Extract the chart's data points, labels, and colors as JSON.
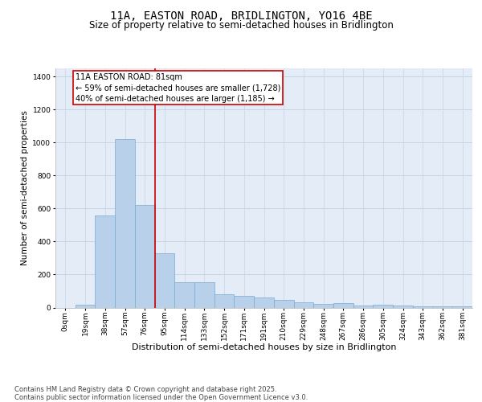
{
  "title": "11A, EASTON ROAD, BRIDLINGTON, YO16 4BE",
  "subtitle": "Size of property relative to semi-detached houses in Bridlington",
  "xlabel": "Distribution of semi-detached houses by size in Bridlington",
  "ylabel": "Number of semi-detached properties",
  "categories": [
    "0sqm",
    "19sqm",
    "38sqm",
    "57sqm",
    "76sqm",
    "95sqm",
    "114sqm",
    "133sqm",
    "152sqm",
    "171sqm",
    "191sqm",
    "210sqm",
    "229sqm",
    "248sqm",
    "267sqm",
    "286sqm",
    "305sqm",
    "324sqm",
    "343sqm",
    "362sqm",
    "381sqm"
  ],
  "values": [
    0,
    15,
    560,
    1020,
    620,
    330,
    155,
    155,
    80,
    70,
    60,
    45,
    30,
    20,
    25,
    10,
    15,
    10,
    5,
    5,
    5
  ],
  "bar_color": "#b8d0ea",
  "bar_edgecolor": "#7aaad0",
  "redline_x": 4.5,
  "redline_color": "#cc0000",
  "annotation_text": "11A EASTON ROAD: 81sqm\n← 59% of semi-detached houses are smaller (1,728)\n40% of semi-detached houses are larger (1,185) →",
  "annotation_box_facecolor": "#ffffff",
  "annotation_box_edgecolor": "#cc0000",
  "ylim": [
    0,
    1450
  ],
  "yticks": [
    0,
    200,
    400,
    600,
    800,
    1000,
    1200,
    1400
  ],
  "grid_color": "#c8d4e4",
  "bg_color": "#e4ecf8",
  "footer": "Contains HM Land Registry data © Crown copyright and database right 2025.\nContains public sector information licensed under the Open Government Licence v3.0.",
  "title_fontsize": 10,
  "subtitle_fontsize": 8.5,
  "xlabel_fontsize": 8,
  "ylabel_fontsize": 7.5,
  "tick_fontsize": 6.5,
  "footer_fontsize": 6.0,
  "annot_fontsize": 7.0
}
